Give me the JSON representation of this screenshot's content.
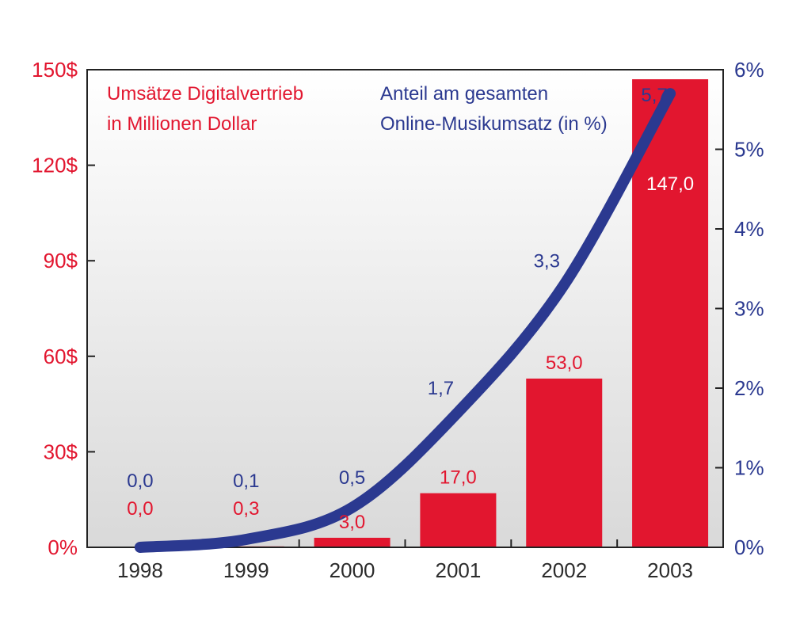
{
  "chart_data": {
    "type": "bar",
    "categories": [
      "1998",
      "1999",
      "2000",
      "2001",
      "2002",
      "2003"
    ],
    "series": [
      {
        "name": "Umsätze Digitalvertrieb in Millionen Dollar",
        "type": "bar",
        "axis": "left",
        "color": "#e2162f",
        "values": [
          0.0,
          0.3,
          3.0,
          17.0,
          53.0,
          147.0
        ],
        "labels": [
          "0,0",
          "0,3",
          "3,0",
          "17,0",
          "53,0",
          "147,0"
        ]
      },
      {
        "name": "Anteil am gesamten Online-Musikumsatz (in %)",
        "type": "line",
        "axis": "right",
        "color": "#2b3990",
        "values": [
          0.0,
          0.1,
          0.5,
          1.7,
          3.3,
          5.7
        ],
        "labels": [
          "0,0",
          "0,1",
          "0,5",
          "1,7",
          "3,3",
          "5,7"
        ]
      }
    ],
    "legend": {
      "bar_line1": "Umsätze Digitalvertrieb",
      "bar_line2": "in Millionen Dollar",
      "line_line1": "Anteil am gesamten",
      "line_line2": "Online-Musikumsatz (in %)"
    },
    "y_left": {
      "ticks": [
        0,
        30,
        60,
        90,
        120,
        150
      ],
      "tick_labels": [
        "0%",
        "30$",
        "60$",
        "90$",
        "120$",
        "150$"
      ],
      "ylim": [
        0,
        150
      ]
    },
    "y_right": {
      "ticks": [
        0,
        1,
        2,
        3,
        4,
        5,
        6
      ],
      "tick_labels": [
        "0%",
        "1%",
        "2%",
        "3%",
        "4%",
        "5%",
        "6%"
      ],
      "ylim": [
        0,
        6
      ]
    },
    "grid": false,
    "legend_placement": "top"
  }
}
